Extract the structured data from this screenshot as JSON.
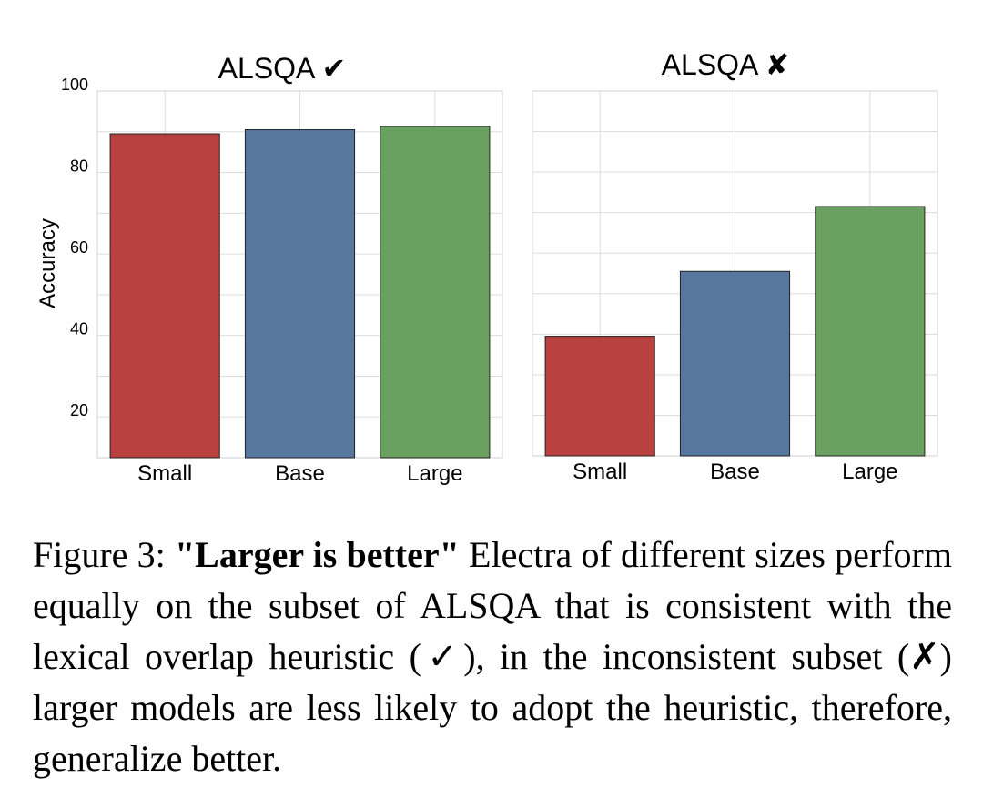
{
  "chart_data": [
    {
      "type": "bar",
      "title": "ALSQA ✔",
      "categories": [
        "Small",
        "Base",
        "Large"
      ],
      "values": [
        89.5,
        90.5,
        91.3
      ],
      "colors": [
        "#b94240",
        "#57779f",
        "#6aa060"
      ],
      "ylabel": "Accuracy",
      "yticks": [
        20,
        40,
        60,
        80,
        100
      ],
      "ylim": [
        10,
        100
      ],
      "grid": true
    },
    {
      "type": "bar",
      "title": "ALSQA ✘",
      "categories": [
        "Small",
        "Base",
        "Large"
      ],
      "values": [
        39.5,
        55.5,
        71.5
      ],
      "colors": [
        "#b94240",
        "#57779f",
        "#6aa060"
      ],
      "ylim": [
        10,
        100
      ],
      "grid": true
    }
  ],
  "caption": {
    "label": "Figure 3: ",
    "bold": "\"Larger is better\"",
    "text": " Electra of different sizes perform equally on the subset of ALSQA that is consistent with the lexical overlap heuristic (✓), in the inconsistent subset (✗) larger models are less likely to adopt the heuristic, therefore, generalize better."
  }
}
